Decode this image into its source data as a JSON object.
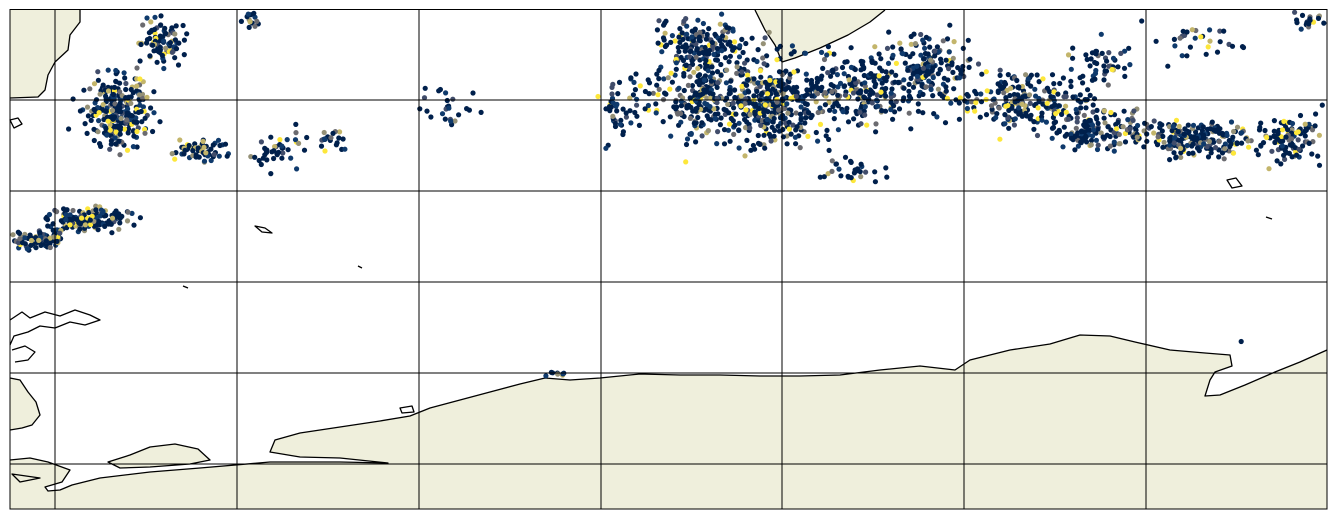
{
  "map": {
    "projection": "plate-carree",
    "grid": true,
    "grid_columns": 7,
    "grid_rows": 6,
    "colors": {
      "land": "#efefdc",
      "ocean": "#ffffff",
      "coastline": "#000000",
      "gridline": "#000000",
      "frame": "#000000"
    },
    "point_palette": "cividis",
    "point_colors": [
      "#00204c",
      "#0f3a6c",
      "#414d6b",
      "#6b6b70",
      "#959177",
      "#c3b56b",
      "#fde73a"
    ]
  }
}
